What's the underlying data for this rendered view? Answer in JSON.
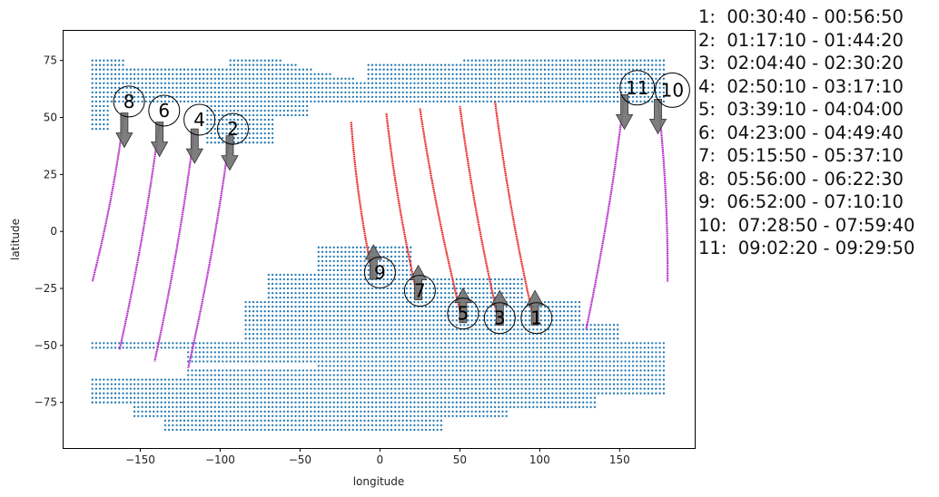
{
  "chart_data": {
    "type": "scatter",
    "title": "",
    "xlabel": "longitude",
    "ylabel": "latitude",
    "xlim": [
      -198,
      197
    ],
    "ylim": [
      -95,
      88
    ],
    "xticks": [
      -150,
      -100,
      -50,
      0,
      50,
      100,
      150
    ],
    "yticks": [
      -75,
      -50,
      -25,
      0,
      25,
      50,
      75
    ],
    "grid": false,
    "colors": {
      "coverage": "#1f77b4",
      "ascending": "#e8231f",
      "descending": "#b526c9",
      "arrow": "#707070"
    },
    "coverage_regions": [
      {
        "name": "northern",
        "lon_range": [
          -180,
          180
        ],
        "lat_range": [
          39,
          77
        ]
      },
      {
        "name": "southern",
        "lon_range": [
          -180,
          180
        ],
        "lat_range": [
          -87,
          -6
        ]
      }
    ],
    "passes": [
      {
        "id": "1",
        "time": "00:30:40 - 00:56:50",
        "direction": "ascending",
        "start": [
          97,
          -41
        ],
        "end": [
          72,
          57
        ]
      },
      {
        "id": "2",
        "time": "01:17:10 - 01:44:20",
        "direction": "descending",
        "start": [
          -94,
          42
        ],
        "end": [
          -120,
          -60
        ]
      },
      {
        "id": "3",
        "time": "02:04:40 - 02:30:20",
        "direction": "ascending",
        "start": [
          75,
          -41
        ],
        "end": [
          50,
          55
        ]
      },
      {
        "id": "4",
        "time": "02:50:10 - 03:17:10",
        "direction": "descending",
        "start": [
          -116,
          45
        ],
        "end": [
          -141,
          -57
        ]
      },
      {
        "id": "5",
        "time": "03:39:10 - 04:04:00",
        "direction": "ascending",
        "start": [
          52,
          -40
        ],
        "end": [
          25,
          54
        ]
      },
      {
        "id": "6",
        "time": "04:23:00 - 04:49:40",
        "direction": "descending",
        "start": [
          -138,
          48
        ],
        "end": [
          -163,
          -52
        ]
      },
      {
        "id": "7",
        "time": "05:15:50 - 05:37:10",
        "direction": "ascending",
        "start": [
          24,
          -30
        ],
        "end": [
          4,
          52
        ]
      },
      {
        "id": "8",
        "time": "05:56:00 - 06:22:30",
        "direction": "descending",
        "start": [
          -160,
          52
        ],
        "end": [
          -180,
          -22
        ]
      },
      {
        "id": "9",
        "time": "06:52:00 - 07:10:10",
        "direction": "ascending",
        "start": [
          -4,
          -21
        ],
        "end": [
          -18,
          48
        ]
      },
      {
        "id": "10",
        "time": "07:28:50 - 07:59:40",
        "direction": "descending",
        "start": [
          174,
          58
        ],
        "end": [
          180,
          -22
        ]
      },
      {
        "id": "11",
        "time": "09:02:20 - 09:29:50",
        "direction": "descending",
        "start": [
          153,
          60
        ],
        "end": [
          129,
          -43
        ]
      }
    ],
    "pass_markers": [
      {
        "id": "1",
        "lon": 98,
        "lat": -38
      },
      {
        "id": "2",
        "lon": -92,
        "lat": 45
      },
      {
        "id": "3",
        "lon": 75,
        "lat": -38
      },
      {
        "id": "4",
        "lon": -113,
        "lat": 49
      },
      {
        "id": "5",
        "lon": 52,
        "lat": -36
      },
      {
        "id": "6",
        "lon": -135,
        "lat": 53
      },
      {
        "id": "7",
        "lon": 25,
        "lat": -26
      },
      {
        "id": "8",
        "lon": -157,
        "lat": 57
      },
      {
        "id": "9",
        "lon": 0,
        "lat": -18
      },
      {
        "id": "10",
        "lon": 183,
        "lat": 62
      },
      {
        "id": "11",
        "lon": 161,
        "lat": 63
      }
    ],
    "legend": [
      "1:  00:30:40 - 00:56:50",
      "2:  01:17:10 - 01:44:20",
      "3:  02:04:40 - 02:30:20",
      "4:  02:50:10 - 03:17:10",
      "5:  03:39:10 - 04:04:00",
      "6:  04:23:00 - 04:49:40",
      "7:  05:15:50 - 05:37:10",
      "8:  05:56:00 - 06:22:30",
      "9:  06:52:00 - 07:10:10",
      "10:  07:28:50 - 07:59:40",
      "11:  09:02:20 - 09:29:50"
    ],
    "legend_placement": "right"
  }
}
